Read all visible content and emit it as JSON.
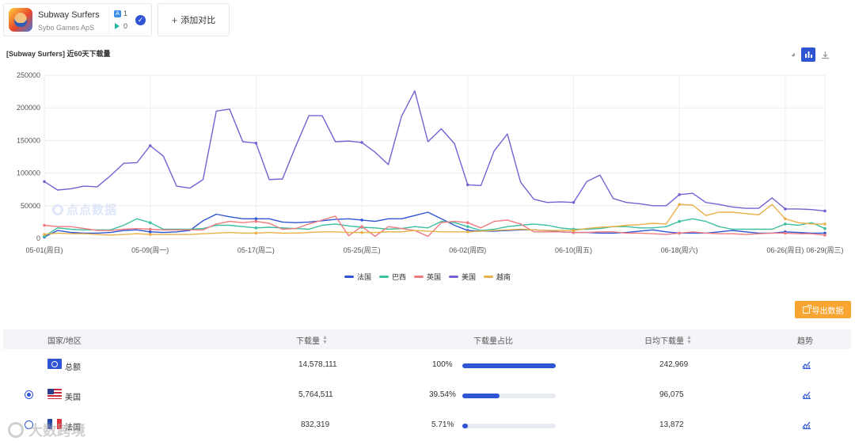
{
  "app": {
    "name": "Subway Surfers",
    "developer": "Sybo Games ApS",
    "ios_count": "1",
    "android_count": "0",
    "add_compare": "添加对比"
  },
  "section_title": "[Subway Surfers]  近60天下载量",
  "watermark": "点点数据",
  "footer_watermark": "大数跨境",
  "colors": {
    "france": "#2f55d4",
    "brazil": "#3cbfa0",
    "uk": "#ee7b7f",
    "usa": "#7a5fd2",
    "vietnam": "#e8b04a",
    "accent": "#2f55d4",
    "export": "#f9a531"
  },
  "export_label": "导出数据",
  "chart_data": {
    "type": "line",
    "title": "[Subway Surfers] 近60天下载量",
    "ylim": [
      0,
      250000
    ],
    "yticks": [
      0,
      50000,
      100000,
      150000,
      200000,
      250000
    ],
    "ytick_labels": [
      "0",
      "50000",
      "100000",
      "150000",
      "200000",
      "250000"
    ],
    "xtick_labels": [
      "05-01(周日)",
      "05-09(周一)",
      "05-17(周二)",
      "05-25(周三)",
      "06-02(周四)",
      "06-10(周五)",
      "06-18(周六)",
      "06-26(周日)",
      "06-29(周三)"
    ],
    "xtick_index": [
      0,
      8,
      16,
      24,
      32,
      40,
      48,
      56,
      59
    ],
    "series": [
      {
        "name": "法国",
        "color": "#2f55d4",
        "values": [
          2000,
          12000,
          9000,
          8000,
          8000,
          9000,
          12000,
          13000,
          10000,
          9000,
          10000,
          12000,
          27000,
          37000,
          33000,
          30000,
          30000,
          30000,
          25000,
          24000,
          25000,
          27000,
          29000,
          30000,
          28000,
          26000,
          30000,
          30000,
          35000,
          40000,
          30000,
          20000,
          12000,
          11000,
          11000,
          12000,
          13000,
          13000,
          12000,
          10000,
          9000,
          9000,
          8000,
          8000,
          9000,
          11000,
          13000,
          10000,
          8000,
          8000,
          8000,
          10000,
          12000,
          10000,
          8000,
          8000,
          10000,
          9000,
          8000,
          8000
        ]
      },
      {
        "name": "巴西",
        "color": "#3cbfa0",
        "values": [
          3000,
          16000,
          14000,
          13000,
          13000,
          13000,
          20000,
          30000,
          24000,
          14000,
          14000,
          14000,
          15000,
          20000,
          20000,
          18000,
          16000,
          17000,
          16000,
          15000,
          14000,
          20000,
          22000,
          19000,
          17000,
          16000,
          14000,
          15000,
          18000,
          16000,
          26000,
          24000,
          18000,
          12000,
          14000,
          18000,
          20000,
          22000,
          20000,
          16000,
          14000,
          14000,
          15000,
          18000,
          18000,
          16000,
          16000,
          18000,
          26000,
          30000,
          26000,
          18000,
          14000,
          14000,
          14000,
          14000,
          22000,
          20000,
          24000,
          15000
        ]
      },
      {
        "name": "英国",
        "color": "#ee7b7f",
        "values": [
          20000,
          18000,
          18000,
          15000,
          12000,
          12000,
          14000,
          15000,
          14000,
          13000,
          13000,
          13000,
          13000,
          22000,
          26000,
          24000,
          26000,
          23000,
          14000,
          15000,
          22000,
          28000,
          34000,
          4000,
          18000,
          3000,
          18000,
          15000,
          12000,
          3000,
          24000,
          26000,
          24000,
          16000,
          26000,
          28000,
          22000,
          10000,
          10000,
          10000,
          9000,
          9000,
          10000,
          10000,
          8000,
          8000,
          7000,
          6000,
          8000,
          10000,
          8000,
          7000,
          7000,
          6000,
          7000,
          8000,
          8000,
          7000,
          7000,
          5000
        ]
      },
      {
        "name": "美国",
        "color": "#7a5fd2",
        "values": [
          87000,
          74000,
          76000,
          80000,
          79000,
          96000,
          115000,
          116000,
          142000,
          126000,
          80000,
          77000,
          90000,
          195000,
          198000,
          148000,
          146000,
          90000,
          91000,
          141000,
          188000,
          188000,
          148000,
          149000,
          147000,
          132000,
          113000,
          187000,
          226000,
          148000,
          168000,
          145000,
          82000,
          81000,
          134000,
          160000,
          86000,
          60000,
          55000,
          56000,
          55000,
          87000,
          97000,
          61000,
          55000,
          53000,
          50000,
          50000,
          67000,
          69000,
          55000,
          52000,
          48000,
          46000,
          46000,
          62000,
          45000,
          45000,
          44000,
          42000
        ]
      },
      {
        "name": "越南",
        "color": "#e8b04a",
        "values": [
          6000,
          8000,
          7000,
          7000,
          6000,
          5000,
          6000,
          7000,
          6000,
          6000,
          6000,
          6000,
          7000,
          8000,
          9000,
          8000,
          8000,
          9000,
          8000,
          8000,
          9000,
          10000,
          10000,
          9000,
          9000,
          9000,
          10000,
          10000,
          12000,
          11000,
          10000,
          10000,
          10000,
          11000,
          12000,
          13000,
          14000,
          13000,
          12000,
          12000,
          12000,
          15000,
          17000,
          18000,
          20000,
          21000,
          23000,
          22000,
          52000,
          51000,
          35000,
          40000,
          40000,
          38000,
          36000,
          52000,
          30000,
          24000,
          22000,
          22000
        ]
      }
    ]
  },
  "table": {
    "headers": {
      "region": "国家/地区",
      "downloads": "下载量",
      "share": "下载量占比",
      "daily": "日均下载量",
      "trend": "趋势"
    },
    "rows": [
      {
        "region": "总额",
        "downloads": "14,578,111",
        "share": "100%",
        "share_value": 100,
        "daily": "242,969"
      },
      {
        "region": "美国",
        "downloads": "5,764,511",
        "share": "39.54%",
        "share_value": 39.54,
        "daily": "96,075"
      },
      {
        "region": "法国",
        "downloads": "832,319",
        "share": "5.71%",
        "share_value": 5.71,
        "daily": "13,872"
      }
    ]
  }
}
